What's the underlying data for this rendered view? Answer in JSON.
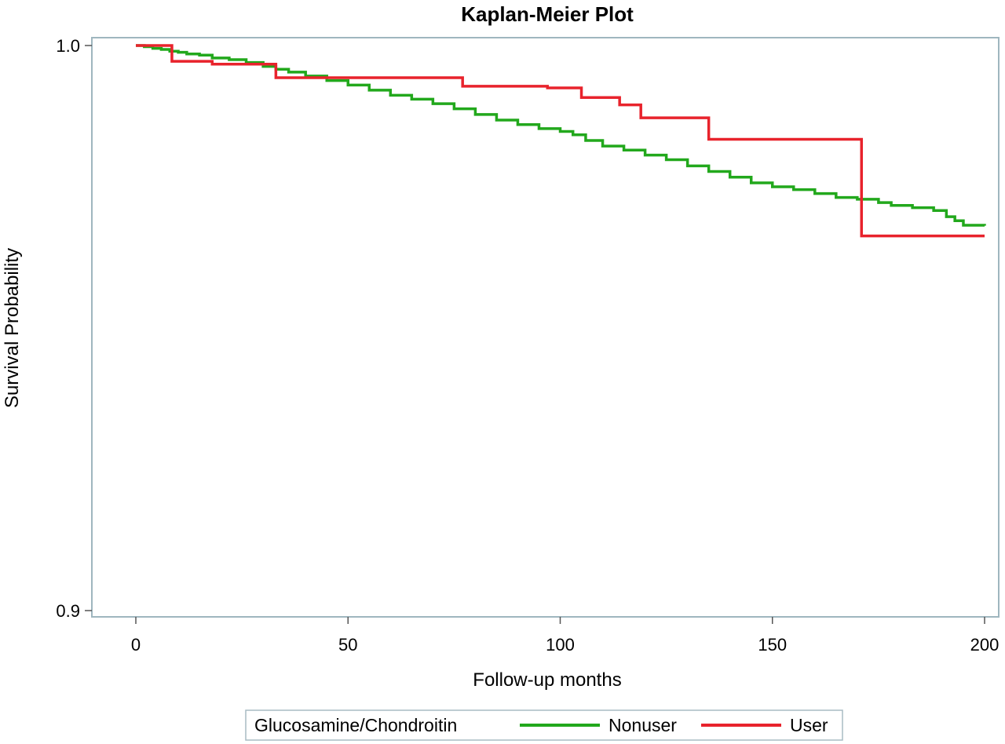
{
  "chart_data": {
    "type": "line",
    "title": "Kaplan-Meier Plot",
    "xlabel": "Follow-up months",
    "ylabel": "Survival Probability",
    "xlim": [
      0,
      200
    ],
    "ylim": [
      0.9,
      1.0
    ],
    "xticks": [
      0,
      50,
      100,
      150,
      200
    ],
    "xtick_labels": [
      "0",
      "50",
      "100",
      "150",
      "200"
    ],
    "yticks": [
      0.9,
      1.0
    ],
    "ytick_labels": [
      "0.9",
      "1.0"
    ],
    "grid": false,
    "legend": {
      "position": "bottom",
      "title": "Glucosamine/Chondroitin",
      "entries": [
        "Nonuser",
        "User"
      ]
    },
    "series": [
      {
        "name": "Nonuser",
        "color": "#22a81c",
        "step": true,
        "x": [
          0,
          2,
          4,
          6,
          8,
          10,
          12,
          15,
          18,
          22,
          26,
          30,
          33,
          36,
          40,
          45,
          50,
          55,
          60,
          65,
          70,
          75,
          80,
          85,
          90,
          95,
          100,
          103,
          106,
          110,
          115,
          120,
          125,
          130,
          135,
          140,
          145,
          150,
          155,
          160,
          165,
          170,
          175,
          178,
          183,
          188,
          191,
          193,
          195,
          200
        ],
        "y": [
          1.0,
          0.9998,
          0.9995,
          0.9993,
          0.999,
          0.9988,
          0.9985,
          0.9983,
          0.9978,
          0.9975,
          0.997,
          0.9963,
          0.9958,
          0.9953,
          0.9946,
          0.9938,
          0.993,
          0.9921,
          0.9912,
          0.9905,
          0.9897,
          0.9888,
          0.9878,
          0.9868,
          0.986,
          0.9853,
          0.9848,
          0.9842,
          0.9832,
          0.9822,
          0.9815,
          0.9806,
          0.9798,
          0.9787,
          0.9777,
          0.9767,
          0.9757,
          0.975,
          0.9745,
          0.9738,
          0.9731,
          0.9728,
          0.9722,
          0.9717,
          0.9713,
          0.9708,
          0.9697,
          0.969,
          0.9682,
          0.9681
        ]
      },
      {
        "name": "User",
        "color": "#e8232c",
        "step": true,
        "x": [
          0,
          8.5,
          18,
          33,
          73,
          77,
          97,
          105,
          114,
          119,
          135,
          171,
          200
        ],
        "y": [
          1.0,
          0.9972,
          0.9967,
          0.9943,
          0.9943,
          0.9928,
          0.9925,
          0.9908,
          0.9895,
          0.9872,
          0.9834,
          0.9663,
          0.9663
        ]
      }
    ]
  }
}
